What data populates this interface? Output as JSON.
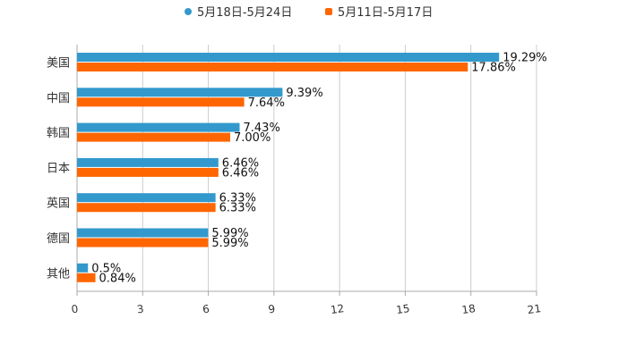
{
  "chart_data": {
    "type": "bar",
    "orientation": "horizontal",
    "title": "",
    "xlabel": "",
    "ylabel": "",
    "categories": [
      "美国",
      "中国",
      "韩国",
      "日本",
      "英国",
      "德国",
      "其他"
    ],
    "series": [
      {
        "name": "5月18日-5月24日",
        "color": "#3399cc",
        "values": [
          19.29,
          9.39,
          7.43,
          6.46,
          6.33,
          5.99,
          0.5
        ],
        "labels": [
          "19.29%",
          "9.39%",
          "7.43%",
          "6.46%",
          "6.33%",
          "5.99%",
          "0.5%"
        ]
      },
      {
        "name": "5月11日-5月17日",
        "color": "#ff6600",
        "values": [
          17.86,
          7.64,
          7.0,
          6.46,
          6.33,
          5.99,
          0.84
        ],
        "labels": [
          "17.86%",
          "7.64%",
          "7.00%",
          "6.46%",
          "6.33%",
          "5.99%",
          "0.84%"
        ]
      }
    ],
    "xlim": [
      0,
      21
    ],
    "xticks": [
      0,
      3,
      6,
      9,
      12,
      15,
      18,
      21
    ],
    "xtick_labels": [
      "0",
      "3",
      "6",
      "9",
      "12",
      "15",
      "18",
      "21"
    ],
    "grid": true,
    "legend": "top-center"
  }
}
